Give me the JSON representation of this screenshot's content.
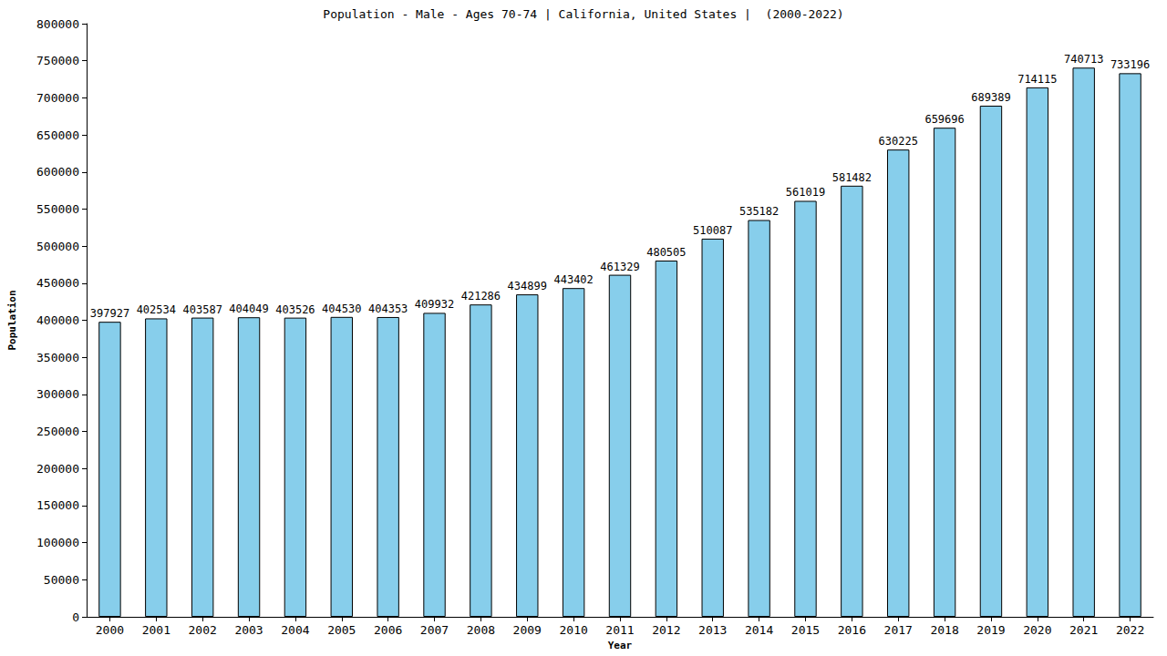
{
  "chart_data": {
    "type": "bar",
    "title": "Population - Male - Ages 70-74 | California, United States |  (2000-2022)",
    "x_label": "Year",
    "y_label": "Population",
    "categories": [
      "2000",
      "2001",
      "2002",
      "2003",
      "2004",
      "2005",
      "2006",
      "2007",
      "2008",
      "2009",
      "2010",
      "2011",
      "2012",
      "2013",
      "2014",
      "2015",
      "2016",
      "2017",
      "2018",
      "2019",
      "2020",
      "2021",
      "2022"
    ],
    "values": [
      397927,
      402534,
      403587,
      404049,
      403526,
      404530,
      404353,
      409932,
      421286,
      434899,
      443402,
      461329,
      480505,
      510087,
      535182,
      561019,
      581482,
      630225,
      659696,
      689389,
      714115,
      740713,
      733196
    ],
    "color": "#87ceeb",
    "ylim": [
      0,
      800000
    ],
    "yticks": [
      0,
      50000,
      100000,
      150000,
      200000,
      250000,
      300000,
      350000,
      400000,
      450000,
      500000,
      550000,
      600000,
      650000,
      700000,
      750000,
      800000
    ],
    "grid": false,
    "data_labels": true
  }
}
